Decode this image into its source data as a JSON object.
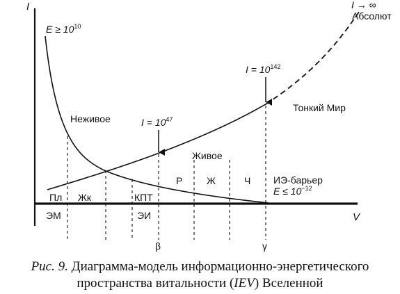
{
  "axes": {
    "y_label": "I",
    "x_label": "V"
  },
  "top_right": {
    "limit": "I → ∞",
    "absolute": "Абсолют"
  },
  "energy_top": {
    "prefix": "E ≥ 10",
    "exp": "10"
  },
  "regions": {
    "nonliving": "Неживое",
    "living": "Живое",
    "subtle_world": "Тонкий Мир"
  },
  "markers": {
    "i47": {
      "prefix": "I = 10",
      "exp": "47"
    },
    "i142": {
      "prefix": "I = 10",
      "exp": "142"
    }
  },
  "barrier": {
    "title": "ИЭ-барьер",
    "prefix": "E ≤ 10",
    "exp": "−12"
  },
  "zones": {
    "pl": "Пл",
    "zhk": "Жк",
    "kpt": "КПТ",
    "r": "Р",
    "zh": "Ж",
    "ch": "Ч"
  },
  "below_axis": {
    "em": "ЭМ",
    "ei": "ЭИ"
  },
  "points": {
    "beta": "β",
    "gamma": "γ"
  },
  "caption": {
    "fig": "Рис. 9.",
    "line1_rest": " Диаграмма-модель информационно-энергетического",
    "line2_pre": "пространства витальности (",
    "line2_abbr": "IEV",
    "line2_post": ") Вселенной"
  }
}
